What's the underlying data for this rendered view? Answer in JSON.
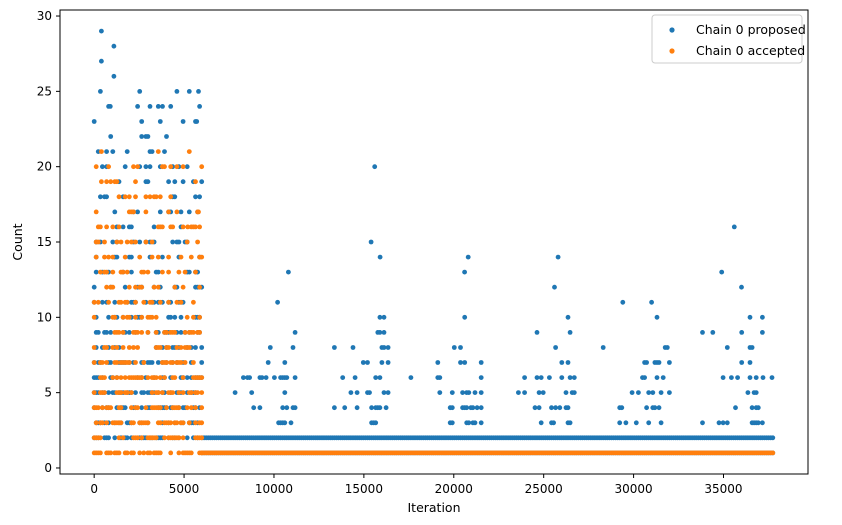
{
  "chart_data": {
    "type": "scatter",
    "title": "",
    "xlabel": "Iteration",
    "ylabel": "Count",
    "xlim": [
      -1900,
      39700
    ],
    "ylim": [
      -0.4,
      30.4
    ],
    "xticks": [
      0,
      5000,
      10000,
      15000,
      20000,
      25000,
      30000,
      35000
    ],
    "yticks": [
      0,
      5,
      10,
      15,
      20,
      25,
      30
    ],
    "grid": false,
    "legend_position": "top-right",
    "n_iterations": 37800,
    "series": [
      {
        "name": "Chain 0 proposed",
        "color": "#1f77b4",
        "marker": "circle",
        "bands": [
          {
            "x_start": 0,
            "x_end": 6000,
            "y_values": [
              2,
              3,
              4,
              5,
              6,
              7,
              8,
              9,
              10,
              11,
              12,
              13,
              14,
              15,
              16,
              17,
              18,
              19,
              20,
              21,
              22,
              23,
              24,
              25
            ],
            "density": 0.55
          },
          {
            "x_start": 6000,
            "x_end": 37800,
            "y_values": [
              1,
              2
            ],
            "density": 1.0
          },
          {
            "x_start": 6000,
            "x_end": 37800,
            "y_values": [
              3,
              4,
              5,
              6,
              7,
              8,
              9,
              10
            ],
            "density": 0.35
          }
        ],
        "peaks": [
          {
            "x": 400,
            "y": 29
          },
          {
            "x": 400,
            "y": 27
          },
          {
            "x": 1100,
            "y": 28
          },
          {
            "x": 1100,
            "y": 26
          },
          {
            "x": 900,
            "y": 24
          },
          {
            "x": 3800,
            "y": 24
          },
          {
            "x": 5800,
            "y": 25
          },
          {
            "x": 5700,
            "y": 23
          },
          {
            "x": 10200,
            "y": 11
          },
          {
            "x": 10800,
            "y": 13
          },
          {
            "x": 15600,
            "y": 20
          },
          {
            "x": 15400,
            "y": 15
          },
          {
            "x": 15900,
            "y": 14
          },
          {
            "x": 20800,
            "y": 14
          },
          {
            "x": 20600,
            "y": 13
          },
          {
            "x": 25800,
            "y": 14
          },
          {
            "x": 25600,
            "y": 12
          },
          {
            "x": 29400,
            "y": 11
          },
          {
            "x": 31000,
            "y": 11
          },
          {
            "x": 35600,
            "y": 16
          },
          {
            "x": 34900,
            "y": 13
          },
          {
            "x": 36000,
            "y": 12
          },
          {
            "x": 37700,
            "y": 6
          },
          {
            "x": 37200,
            "y": 6
          }
        ]
      },
      {
        "name": "Chain 0 accepted",
        "color": "#ff7f0e",
        "marker": "circle",
        "bands": [
          {
            "x_start": 0,
            "x_end": 6000,
            "y_values": [
              1,
              2,
              3,
              4,
              5,
              6,
              7,
              8,
              9,
              10,
              11,
              12,
              13,
              14,
              15,
              16,
              17,
              18,
              19,
              20,
              21
            ],
            "density": 0.55
          },
          {
            "x_start": 6000,
            "x_end": 37800,
            "y_values": [
              1
            ],
            "density": 1.0
          }
        ],
        "peaks": [
          {
            "x": 400,
            "y": 21
          },
          {
            "x": 400,
            "y": 19
          },
          {
            "x": 5800,
            "y": 17
          },
          {
            "x": 5200,
            "y": 16
          }
        ]
      }
    ]
  }
}
